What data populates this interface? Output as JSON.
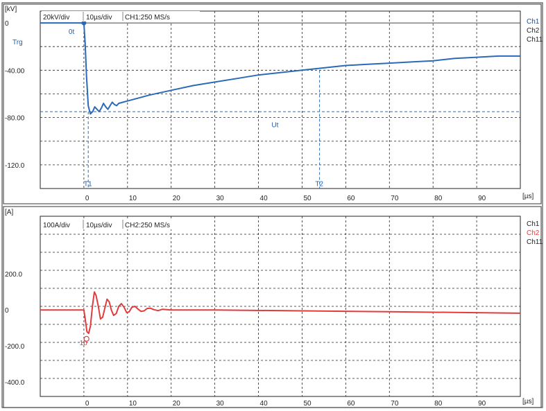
{
  "chart_data": [
    {
      "type": "line",
      "panel": "voltage",
      "unit_label": "[kV]",
      "xlabel": "[µs]",
      "settings": {
        "vdiv": "20kV/div",
        "tdiv": "10µs/div",
        "rate": "CH1:250 MS/s"
      },
      "ylim": [
        -140,
        10
      ],
      "xlim": [
        -10,
        100
      ],
      "y_ticks": [
        {
          "v": 0,
          "label": "0"
        },
        {
          "v": -40,
          "label": "-40.00"
        },
        {
          "v": -80,
          "label": "-80.00"
        },
        {
          "v": -120,
          "label": "-120.0"
        }
      ],
      "x_ticks": [
        {
          "v": 0,
          "label": "0"
        },
        {
          "v": 10,
          "label": "10"
        },
        {
          "v": 20,
          "label": "20"
        },
        {
          "v": 30,
          "label": "30"
        },
        {
          "v": 40,
          "label": "40"
        },
        {
          "v": 50,
          "label": "50"
        },
        {
          "v": 60,
          "label": "60"
        },
        {
          "v": 70,
          "label": "70"
        },
        {
          "v": 80,
          "label": "80"
        },
        {
          "v": 90,
          "label": "90"
        }
      ],
      "legend": [
        {
          "label": "Ch1",
          "color": "#1a50a0"
        },
        {
          "label": "Ch2",
          "color": "#222222"
        },
        {
          "label": "Ch11",
          "color": "#222222"
        }
      ],
      "series": [
        {
          "name": "Ch1",
          "color": "#2a6ab8",
          "x": [
            -10,
            0,
            0.3,
            0.6,
            1,
            1.5,
            2,
            2.5,
            3,
            3.5,
            4,
            4.5,
            5,
            5.5,
            6,
            6.5,
            7,
            7.5,
            8,
            9,
            10,
            12,
            15,
            20,
            25,
            30,
            35,
            40,
            45,
            50,
            55,
            60,
            65,
            70,
            75,
            80,
            85,
            90,
            95,
            100
          ],
          "y": [
            0,
            0,
            -18,
            -45,
            -70,
            -77,
            -75,
            -71,
            -73,
            -75,
            -72,
            -68,
            -71,
            -73,
            -70,
            -67,
            -69,
            -70,
            -68,
            -67,
            -66,
            -64,
            -61,
            -57,
            -53,
            -50,
            -47,
            -44,
            -42,
            -40,
            -38,
            -36,
            -35,
            -34,
            -33,
            -32,
            -30,
            -29,
            -28,
            -28
          ]
        }
      ],
      "annotations": [
        {
          "label": "0t",
          "x": 0,
          "y": 0
        },
        {
          "label": "Trg",
          "x": -10,
          "y": -18
        },
        {
          "label": "Ut",
          "x": 43,
          "y": -88
        },
        {
          "label": "T1",
          "x": 0,
          "y": -138
        },
        {
          "label": "T2",
          "x": 53,
          "y": -138
        }
      ],
      "reference_lines": {
        "h": -75,
        "v1": 1,
        "v2": 54
      }
    },
    {
      "type": "line",
      "panel": "current",
      "unit_label": "[A]",
      "xlabel": "[µs]",
      "settings": {
        "vdiv": "100A/div",
        "tdiv": "10µs/div",
        "rate": "CH2:250 MS/s"
      },
      "ylim": [
        -480,
        520
      ],
      "xlim": [
        -10,
        100
      ],
      "y_ticks": [
        {
          "v": 200,
          "label": "200.0"
        },
        {
          "v": 0,
          "label": "0"
        },
        {
          "v": -200,
          "label": "-200.0"
        },
        {
          "v": -400,
          "label": "-400.0"
        }
      ],
      "x_ticks": [
        {
          "v": 0,
          "label": "0"
        },
        {
          "v": 10,
          "label": "10"
        },
        {
          "v": 20,
          "label": "20"
        },
        {
          "v": 30,
          "label": "30"
        },
        {
          "v": 40,
          "label": "40"
        },
        {
          "v": 50,
          "label": "50"
        },
        {
          "v": 60,
          "label": "60"
        },
        {
          "v": 70,
          "label": "70"
        },
        {
          "v": 80,
          "label": "80"
        },
        {
          "v": 90,
          "label": "90"
        }
      ],
      "legend": [
        {
          "label": "Ch1",
          "color": "#222222"
        },
        {
          "label": "Ch2",
          "color": "#e04040"
        },
        {
          "label": "Ch11",
          "color": "#222222"
        }
      ],
      "series": [
        {
          "name": "Ch2",
          "color": "#e23b3b",
          "x": [
            -10,
            0,
            0.3,
            0.7,
            1.1,
            1.5,
            2,
            2.4,
            2.8,
            3.3,
            3.8,
            4.3,
            4.8,
            5.3,
            5.8,
            6.3,
            6.8,
            7.4,
            8,
            8.6,
            9.2,
            9.8,
            10.4,
            11,
            11.7,
            12.4,
            13.1,
            13.8,
            14.5,
            15.2,
            16,
            17,
            18,
            19,
            20,
            30,
            50,
            70,
            90,
            100
          ],
          "y": [
            0,
            0,
            -50,
            -120,
            -130,
            -90,
            30,
            100,
            80,
            20,
            -50,
            -40,
            10,
            60,
            45,
            0,
            -30,
            -20,
            20,
            35,
            15,
            -15,
            -10,
            15,
            20,
            5,
            -8,
            -5,
            8,
            10,
            2,
            -4,
            4,
            2,
            0,
            0,
            -5,
            -10,
            -15,
            -18
          ]
        }
      ],
      "annotations": [
        {
          "label": "1b",
          "x": -1,
          "y": -195
        }
      ]
    }
  ]
}
